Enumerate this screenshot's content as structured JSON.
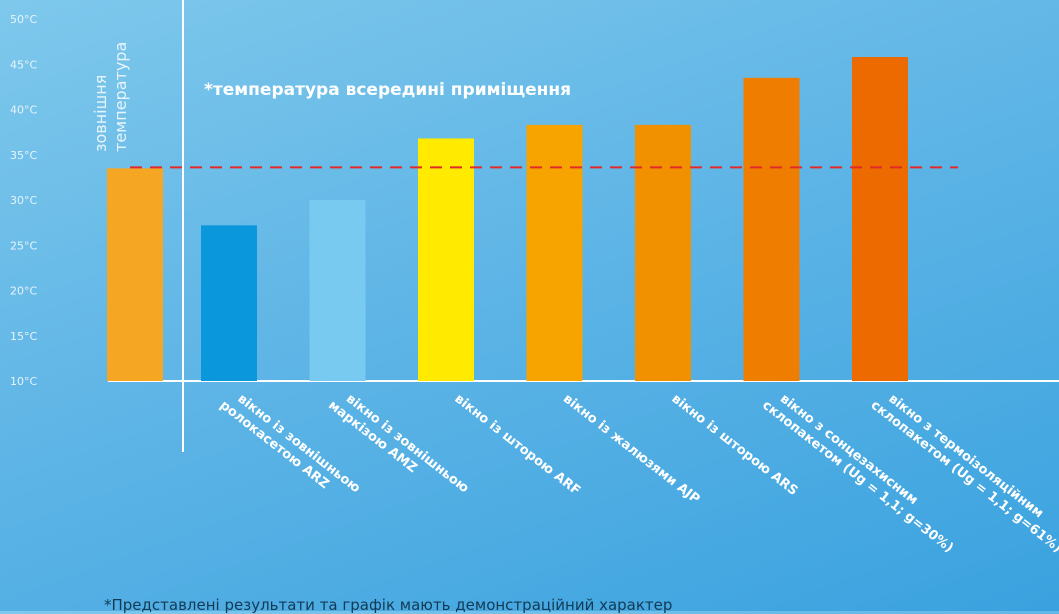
{
  "chart_data": {
    "type": "bar",
    "y_unit": "°C",
    "yticks": [
      "50°C",
      "45°C",
      "40°C",
      "35°C",
      "30°C",
      "25°C",
      "20°C",
      "15°C",
      "10°C"
    ],
    "ylim": [
      10,
      50
    ],
    "reference_line": {
      "value": 33.6,
      "label": "*температура всередині приміщення",
      "color": "#e12b2b"
    },
    "outside_label": [
      "зовнішня",
      "температура"
    ],
    "outside_value": 33.5,
    "outside_color": "#f5a623",
    "categories": [
      [
        "вікно із зовнішньою",
        "ролокасетою ARZ"
      ],
      [
        "вікно із зовнішньою",
        "маркізою AMZ"
      ],
      [
        "вікно із шторою ARF"
      ],
      [
        "вікно із жалюзями AJP"
      ],
      [
        "вікно із шторою ARS"
      ],
      [
        "вікно з сонцезахисним",
        "склопакетом (Ug = 1,1; g=30%)"
      ],
      [
        "вікно з термоізоляційним",
        "склопакетом (Ug = 1,1; g=61%)"
      ]
    ],
    "values": [
      27.2,
      30.0,
      36.8,
      38.3,
      38.3,
      43.5,
      45.8
    ],
    "colors": [
      "#0a97dc",
      "#79caf0",
      "#ffea00",
      "#f7a400",
      "#f29100",
      "#ef7d00",
      "#ec6a00"
    ],
    "grid": false
  },
  "footnote": "*Представлені результати та графік мають демонстраційний характер"
}
